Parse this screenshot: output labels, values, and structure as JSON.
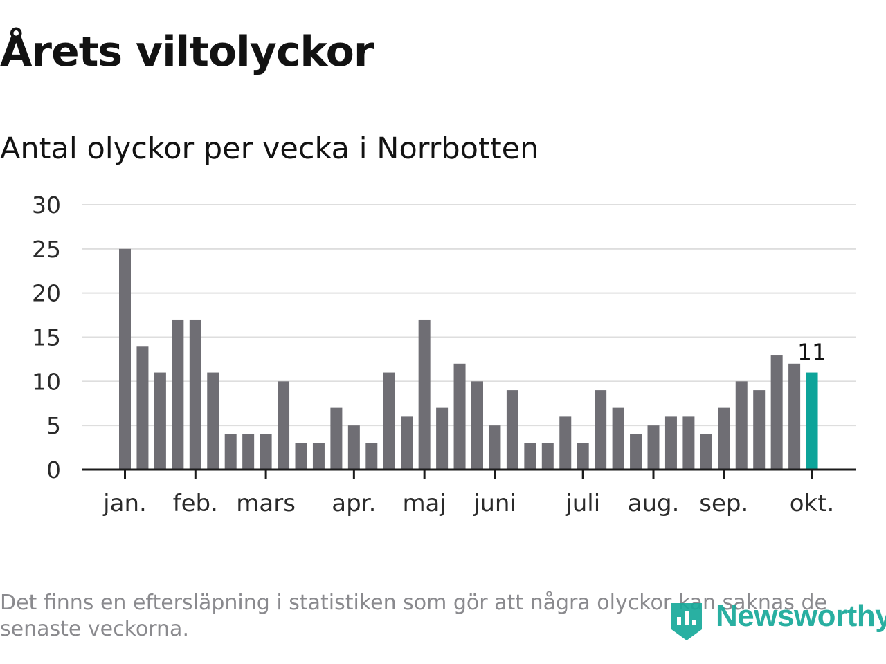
{
  "header": {
    "title": "Årets viltolyckor",
    "subtitle": "Antal olyckor per vecka i Norrbotten"
  },
  "footer": {
    "note": "Det finns en eftersläpning i statistiken som gör att några olyckor kan saknas de senaste veckorna.",
    "logo_text": "Newsworthy"
  },
  "colors": {
    "bar": "#6f6e74",
    "highlight": "#0da49a",
    "grid": "#dedede",
    "axis": "#1b1b1b",
    "text": "#121212",
    "note": "#8a8a8e"
  },
  "chart_data": {
    "type": "bar",
    "title": "Antal olyckor per vecka i Norrbotten",
    "xlabel": "",
    "ylabel": "",
    "ylim": [
      0,
      30
    ],
    "yticks": [
      0,
      5,
      10,
      15,
      20,
      25,
      30
    ],
    "grid": true,
    "values": [
      25,
      14,
      11,
      17,
      17,
      11,
      4,
      4,
      4,
      10,
      3,
      3,
      7,
      5,
      3,
      11,
      6,
      17,
      7,
      12,
      10,
      5,
      9,
      3,
      3,
      6,
      3,
      9,
      7,
      4,
      5,
      6,
      6,
      4,
      7,
      10,
      9,
      13,
      12,
      11
    ],
    "highlight_index": 39,
    "highlight_label": "11",
    "months": [
      {
        "label": "jan.",
        "week_index": 0
      },
      {
        "label": "feb.",
        "week_index": 4
      },
      {
        "label": "mars",
        "week_index": 8
      },
      {
        "label": "apr.",
        "week_index": 13
      },
      {
        "label": "maj",
        "week_index": 17
      },
      {
        "label": "juni",
        "week_index": 21
      },
      {
        "label": "juli",
        "week_index": 26
      },
      {
        "label": "aug.",
        "week_index": 30
      },
      {
        "label": "sep.",
        "week_index": 34
      },
      {
        "label": "okt.",
        "week_index": 39
      }
    ]
  }
}
